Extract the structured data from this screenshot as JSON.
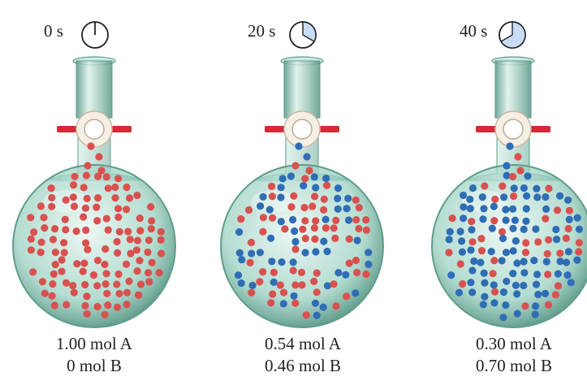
{
  "colors": {
    "species_a": "#d9514f",
    "species_b": "#2f6db5",
    "glass": "#9dd2c3",
    "glass_dark": "#5f9c8c",
    "stopcock": "#d42a35",
    "clock_fill": "#c8ddf5",
    "clock_stroke": "#222222"
  },
  "icons": [
    "clock-icon",
    "stopcock-icon",
    "flask-icon"
  ],
  "flasks": [
    {
      "time_label": "0 s",
      "clock_fraction": 0,
      "species_a_count": 1.0,
      "species_b_count": 0,
      "label_a": "1.00 mol A",
      "label_b": "0 mol B"
    },
    {
      "time_label": "20 s",
      "clock_fraction": 0.333,
      "species_a_count": 0.54,
      "species_b_count": 0.46,
      "label_a": "0.54 mol A",
      "label_b": "0.46 mol B"
    },
    {
      "time_label": "40 s",
      "clock_fraction": 0.667,
      "species_a_count": 0.3,
      "species_b_count": 0.7,
      "label_a": "0.30 mol A",
      "label_b": "0.70 mol B"
    }
  ]
}
